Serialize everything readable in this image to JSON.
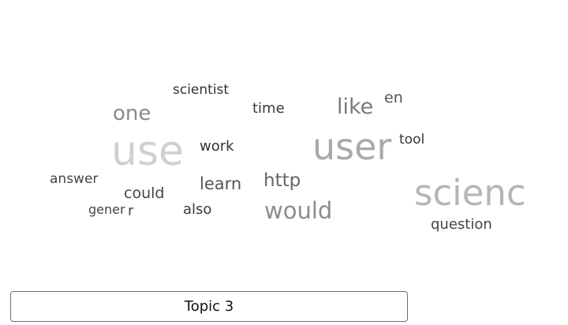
{
  "cloud": {
    "words": [
      {
        "text": "scientist",
        "color": "#333333"
      },
      {
        "text": "en",
        "color": "#555555"
      },
      {
        "text": "one",
        "color": "#8a8a8a"
      },
      {
        "text": "time",
        "color": "#3a3a3a"
      },
      {
        "text": "like",
        "color": "#7a7a7a"
      },
      {
        "text": "tool",
        "color": "#333333"
      },
      {
        "text": "use",
        "color": "#d0d0d0"
      },
      {
        "text": "work",
        "color": "#333333"
      },
      {
        "text": "user",
        "color": "#a9a9a9"
      },
      {
        "text": "answer",
        "color": "#444444"
      },
      {
        "text": "learn",
        "color": "#555555"
      },
      {
        "text": "http",
        "color": "#666666"
      },
      {
        "text": "scienc",
        "color": "#b5b5b5"
      },
      {
        "text": "could",
        "color": "#444444"
      },
      {
        "text": "gener",
        "color": "#444444"
      },
      {
        "text": "r",
        "color": "#444444"
      },
      {
        "text": "also",
        "color": "#3a3a3a"
      },
      {
        "text": "would",
        "color": "#8c8c8c"
      },
      {
        "text": "question",
        "color": "#444444"
      }
    ]
  },
  "topic_button": {
    "label": "Topic 3"
  }
}
